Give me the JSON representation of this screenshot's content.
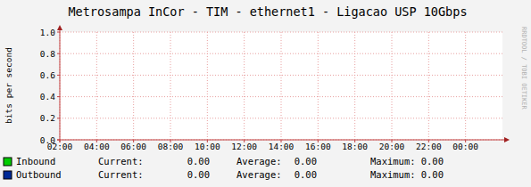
{
  "chart_data": {
    "type": "line",
    "title": "Metrosampa InCor - TIM - ethernet1 - Ligacao USP 10Gbps",
    "y_label": "bits per second",
    "side_label": "RRDTOOL / TOBI OETIKER",
    "x": [],
    "xlim": [
      2,
      26
    ],
    "xticks": [
      {
        "value": 2,
        "label": "02:00"
      },
      {
        "value": 4,
        "label": "04:00"
      },
      {
        "value": 6,
        "label": "06:00"
      },
      {
        "value": 8,
        "label": "08:00"
      },
      {
        "value": 10,
        "label": "10:00"
      },
      {
        "value": 12,
        "label": "12:00"
      },
      {
        "value": 14,
        "label": "14:00"
      },
      {
        "value": 16,
        "label": "16:00"
      },
      {
        "value": 18,
        "label": "18:00"
      },
      {
        "value": 20,
        "label": "20:00"
      },
      {
        "value": 22,
        "label": "22:00"
      },
      {
        "value": 24,
        "label": "00:00"
      }
    ],
    "ylim": [
      0,
      1
    ],
    "yticks": [
      {
        "value": 0,
        "label": "0.0"
      },
      0.2,
      0.4,
      0.6,
      0.8,
      {
        "value": 1,
        "label": "1.0"
      }
    ],
    "grid": true,
    "legend": "bottom",
    "stat_labels": [
      "Current:",
      "Average:",
      "Maximum:"
    ],
    "series": [
      {
        "name": "Inbound",
        "type": "area",
        "color": "#00cc00",
        "values": [],
        "current": {
          "value": 0,
          "label": "0.00"
        },
        "average": {
          "value": 0,
          "label": "0.00"
        },
        "maximum": {
          "value": 0,
          "label": "0.00"
        }
      },
      {
        "name": "Outbound",
        "type": "line",
        "color": "#002a97",
        "values": [],
        "current": {
          "value": 0,
          "label": "0.00"
        },
        "average": {
          "value": 0,
          "label": "0.00"
        },
        "maximum": {
          "value": 0,
          "label": "0.00"
        }
      }
    ]
  }
}
